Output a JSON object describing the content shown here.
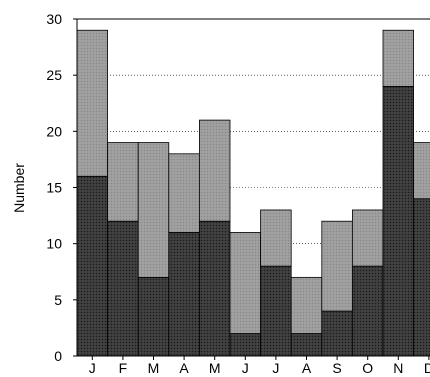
{
  "chart_data": {
    "type": "bar",
    "stacked": true,
    "categories": [
      "J",
      "F",
      "M",
      "A",
      "M",
      "J",
      "J",
      "A",
      "S",
      "O",
      "N",
      "D"
    ],
    "series": [
      {
        "values": [
          16,
          12,
          7,
          11,
          12,
          2,
          8,
          2,
          4,
          8,
          24,
          14
        ],
        "color": "#333333"
      },
      {
        "values": [
          13,
          7,
          12,
          7,
          9,
          9,
          5,
          5,
          8,
          5,
          5,
          5
        ],
        "color": "#9a9a9a"
      }
    ],
    "title": "",
    "xlabel": "",
    "ylabel": "Number",
    "ylim": [
      0,
      30
    ],
    "yticks": [
      0,
      5,
      10,
      15,
      20,
      25,
      30
    ],
    "grid": "horizontal-dotted"
  }
}
